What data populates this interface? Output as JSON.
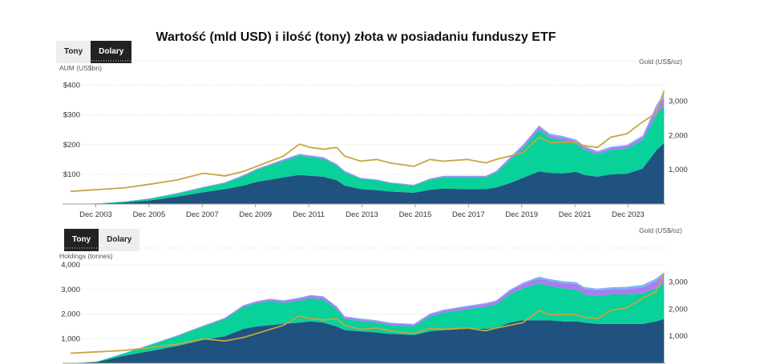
{
  "title": "Wartość (mld USD) i ilość (tony) złota w posiadaniu funduszy ETF",
  "colors": {
    "north_america": "#20527f",
    "europe": "#08d19a",
    "asia": "#a97cf0",
    "other": "#7bb4f5",
    "gold_price": "#c9a443",
    "toggle_active_bg": "#222222",
    "toggle_bg": "#eeeeee"
  },
  "toggles": {
    "top": {
      "tony": "Tony",
      "dolary": "Dolary",
      "active": "dolary"
    },
    "bottom": {
      "tony": "Tony",
      "dolary": "Dolary",
      "active": "tony"
    }
  },
  "chart_data": [
    {
      "type": "area",
      "stacked": true,
      "ylabel": "AUM (US$bn)",
      "y2label": "Gold (US$/oz)",
      "xticks": [
        "Dec 2003",
        "Dec 2005",
        "Dec 2007",
        "Dec 2009",
        "Dec 2011",
        "Dec 2013",
        "Dec 2015",
        "Dec 2017",
        "Dec 2019",
        "Dec 2021",
        "Dec 2023"
      ],
      "yticks": [
        "$100",
        "$200",
        "$300",
        "$400"
      ],
      "y2ticks": [
        "1,000",
        "2,000",
        "3,000"
      ],
      "ylim": [
        0,
        450
      ],
      "y2lim": [
        0,
        3900
      ],
      "x": [
        2003.0,
        2004.0,
        2005.0,
        2006.0,
        2007.0,
        2008.0,
        2008.8,
        2009.5,
        2010.0,
        2010.5,
        2011.0,
        2011.6,
        2012.0,
        2012.5,
        2013.0,
        2013.3,
        2013.9,
        2014.5,
        2015.0,
        2015.9,
        2016.5,
        2017.0,
        2017.9,
        2018.6,
        2019.0,
        2019.5,
        2020.0,
        2020.6,
        2021.0,
        2021.5,
        2022.0,
        2022.3,
        2022.8,
        2023.3,
        2023.9,
        2024.5,
        2025.0,
        2025.3
      ],
      "series": [
        {
          "values": [
            0,
            1,
            5,
            12,
            25,
            40,
            50,
            62,
            75,
            82,
            90,
            98,
            95,
            92,
            80,
            62,
            50,
            47,
            42,
            38,
            48,
            52,
            50,
            50,
            56,
            70,
            88,
            110,
            105,
            103,
            108,
            98,
            92,
            100,
            102,
            120,
            180,
            205
          ]
        },
        {
          "values": [
            0,
            1,
            3,
            6,
            10,
            15,
            20,
            32,
            40,
            48,
            55,
            65,
            63,
            60,
            50,
            45,
            35,
            33,
            28,
            24,
            34,
            38,
            40,
            40,
            50,
            78,
            100,
            140,
            118,
            112,
            95,
            85,
            75,
            82,
            85,
            95,
            120,
            125
          ]
        },
        {
          "values": [
            0,
            0,
            0,
            1,
            1,
            2,
            2,
            3,
            3,
            3,
            4,
            4,
            4,
            4,
            3,
            3,
            2,
            2,
            2,
            2,
            3,
            3,
            3,
            3,
            4,
            6,
            8,
            10,
            9,
            9,
            9,
            8,
            7,
            7,
            8,
            10,
            20,
            28
          ]
        },
        {
          "values": [
            0,
            0,
            0,
            0,
            1,
            1,
            1,
            1,
            1,
            2,
            2,
            2,
            2,
            2,
            2,
            2,
            1,
            1,
            1,
            1,
            1,
            2,
            2,
            2,
            2,
            3,
            4,
            5,
            5,
            5,
            5,
            4,
            4,
            4,
            4,
            6,
            12,
            15
          ]
        }
      ],
      "gold_price": [
        370,
        420,
        470,
        580,
        700,
        900,
        820,
        950,
        1100,
        1250,
        1400,
        1750,
        1650,
        1600,
        1650,
        1400,
        1250,
        1300,
        1200,
        1100,
        1300,
        1250,
        1300,
        1200,
        1300,
        1400,
        1500,
        1950,
        1800,
        1800,
        1800,
        1700,
        1650,
        1950,
        2050,
        2400,
        2650,
        3300
      ]
    },
    {
      "type": "area",
      "stacked": true,
      "ylabel": "Holdings (tonnes)",
      "y2label": "Gold (US$/oz)",
      "yticks": [
        "1,000",
        "2,000",
        "3,000",
        "4,000"
      ],
      "y2ticks": [
        "1,000",
        "2,000",
        "3,000"
      ],
      "ylim": [
        0,
        4300
      ],
      "y2lim": [
        0,
        3900
      ],
      "x": [
        2003.0,
        2004.0,
        2005.0,
        2006.0,
        2007.0,
        2008.0,
        2008.8,
        2009.5,
        2010.0,
        2010.5,
        2011.0,
        2011.6,
        2012.0,
        2012.5,
        2013.0,
        2013.3,
        2013.9,
        2014.5,
        2015.0,
        2015.9,
        2016.5,
        2017.0,
        2017.9,
        2018.6,
        2019.0,
        2019.5,
        2020.0,
        2020.6,
        2021.0,
        2021.5,
        2022.0,
        2022.3,
        2022.8,
        2023.3,
        2023.9,
        2024.5,
        2025.0,
        2025.3
      ],
      "series": [
        {
          "values": [
            0,
            50,
            300,
            500,
            700,
            950,
            1100,
            1400,
            1500,
            1550,
            1600,
            1650,
            1700,
            1650,
            1500,
            1350,
            1300,
            1250,
            1200,
            1150,
            1300,
            1350,
            1400,
            1400,
            1450,
            1650,
            1750,
            1750,
            1750,
            1700,
            1700,
            1650,
            1600,
            1600,
            1600,
            1600,
            1700,
            1800
          ]
        },
        {
          "values": [
            0,
            20,
            100,
            250,
            400,
            550,
            700,
            900,
            950,
            980,
            850,
            900,
            950,
            950,
            700,
            450,
            420,
            400,
            350,
            350,
            600,
            700,
            800,
            900,
            950,
            1150,
            1300,
            1500,
            1400,
            1350,
            1300,
            1150,
            1150,
            1200,
            1200,
            1250,
            1350,
            1450
          ]
        },
        {
          "values": [
            0,
            0,
            5,
            10,
            20,
            30,
            40,
            50,
            60,
            70,
            80,
            90,
            95,
            95,
            90,
            80,
            70,
            70,
            70,
            70,
            80,
            90,
            100,
            110,
            120,
            140,
            170,
            200,
            210,
            210,
            220,
            220,
            210,
            210,
            220,
            240,
            280,
            320
          ]
        },
        {
          "values": [
            0,
            0,
            0,
            5,
            10,
            10,
            15,
            20,
            20,
            25,
            30,
            30,
            30,
            30,
            30,
            30,
            30,
            30,
            30,
            30,
            40,
            40,
            40,
            40,
            40,
            50,
            60,
            70,
            70,
            80,
            80,
            80,
            80,
            80,
            90,
            100,
            120,
            130
          ]
        }
      ],
      "gold_price": [
        370,
        420,
        470,
        580,
        700,
        900,
        820,
        950,
        1100,
        1250,
        1400,
        1750,
        1650,
        1600,
        1650,
        1400,
        1250,
        1300,
        1200,
        1100,
        1300,
        1250,
        1300,
        1200,
        1300,
        1400,
        1500,
        1950,
        1800,
        1800,
        1800,
        1700,
        1650,
        1950,
        2050,
        2400,
        2650,
        3300
      ]
    }
  ]
}
